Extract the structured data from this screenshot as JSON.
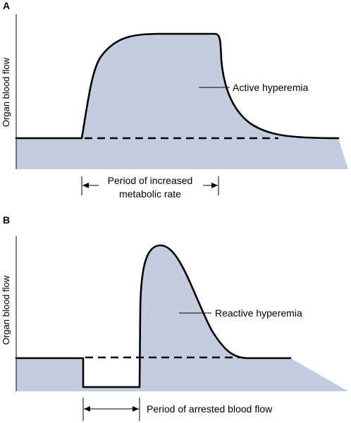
{
  "panel_a": {
    "label": "A",
    "ylabel": "Organ blood flow",
    "curve_label": "Active hyperemia",
    "period_label_line1": "Period of increased",
    "period_label_line2": "metabolic rate"
  },
  "panel_b": {
    "label": "B",
    "ylabel": "Organ blood flow",
    "curve_label": "Reactive hyperemia",
    "period_label": "Period of arrested blood flow"
  },
  "colors": {
    "fill": "#c4cce0",
    "line": "#000000"
  }
}
